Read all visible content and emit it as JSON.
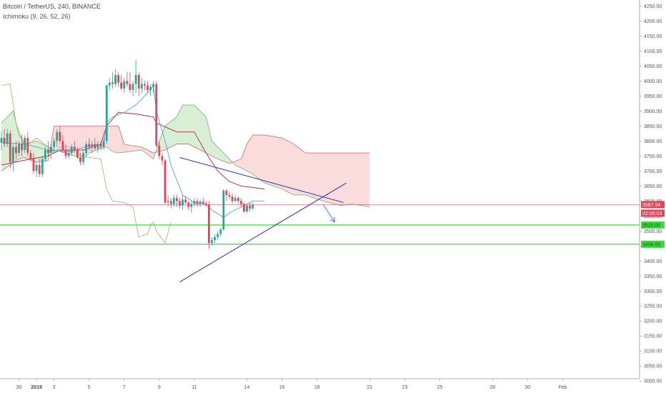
{
  "header": {
    "symbol": "Bitcoin / TetherUS, 240, BINANCE",
    "indicator": "Ichimoku (9, 26, 52, 26)"
  },
  "colors": {
    "bull": "#26a69a",
    "bear": "#e0455a",
    "cloud_bull_fill": "#d8eed5",
    "cloud_bear_fill": "#fbdcdc",
    "span_a": "#7fb77a",
    "span_b": "#d4747a",
    "conversion": "#4aa3df",
    "base": "#a82d3c",
    "lagging": "#b5b27a",
    "trendline": "#3f3fbf",
    "support": "#3fd93f",
    "price_line": "#e0455a"
  },
  "chart_data": {
    "type": "candlestick",
    "title": "Bitcoin / TetherUS, 240, BINANCE",
    "indicator": "Ichimoku (9, 26, 52, 26)",
    "ylim": [
      2960,
      4270
    ],
    "y_ticks": [
      3000,
      3050,
      3100,
      3150,
      3200,
      3250,
      3300,
      3350,
      3400,
      3450,
      3500,
      3550,
      3600,
      3650,
      3700,
      3750,
      3800,
      3850,
      3900,
      3950,
      4000,
      4050,
      4100,
      4150,
      4200,
      4250
    ],
    "x_ticks": [
      {
        "label": "30",
        "t": 6,
        "bold": false
      },
      {
        "label": "2019",
        "t": 12,
        "bold": true
      },
      {
        "label": "3",
        "t": 18,
        "bold": false
      },
      {
        "label": "5",
        "t": 30,
        "bold": false
      },
      {
        "label": "7",
        "t": 42,
        "bold": false
      },
      {
        "label": "9",
        "t": 54,
        "bold": false
      },
      {
        "label": "11",
        "t": 66,
        "bold": false
      },
      {
        "label": "14",
        "t": 84,
        "bold": false
      },
      {
        "label": "16",
        "t": 96,
        "bold": false
      },
      {
        "label": "18",
        "t": 108,
        "bold": false
      },
      {
        "label": "21",
        "t": 126,
        "bold": false
      },
      {
        "label": "23",
        "t": 138,
        "bold": false
      },
      {
        "label": "25",
        "t": 150,
        "bold": false
      },
      {
        "label": "28",
        "t": 168,
        "bold": false
      },
      {
        "label": "30",
        "t": 180,
        "bold": false
      },
      {
        "label": "Feb",
        "t": 192,
        "bold": false
      }
    ],
    "last_price": 3587.94,
    "last_price_label": "3587.94",
    "countdown_label": "02:06:03",
    "levels": [
      {
        "value": 3520,
        "label": "3520.00"
      },
      {
        "value": 3456,
        "label": "3456.00"
      }
    ],
    "candles": [
      [
        3795,
        3830,
        3770,
        3810
      ],
      [
        3810,
        3840,
        3780,
        3790
      ],
      [
        3790,
        3840,
        3780,
        3825
      ],
      [
        3825,
        3835,
        3710,
        3730
      ],
      [
        3730,
        3790,
        3700,
        3780
      ],
      [
        3780,
        3800,
        3740,
        3760
      ],
      [
        3760,
        3800,
        3750,
        3790
      ],
      [
        3790,
        3820,
        3750,
        3770
      ],
      [
        3770,
        3820,
        3760,
        3810
      ],
      [
        3810,
        3830,
        3750,
        3760
      ],
      [
        3760,
        3770,
        3730,
        3740
      ],
      [
        3740,
        3760,
        3690,
        3700
      ],
      [
        3700,
        3730,
        3680,
        3720
      ],
      [
        3720,
        3740,
        3680,
        3690
      ],
      [
        3690,
        3750,
        3680,
        3740
      ],
      [
        3740,
        3780,
        3730,
        3770
      ],
      [
        3770,
        3800,
        3750,
        3760
      ],
      [
        3760,
        3790,
        3740,
        3780
      ],
      [
        3780,
        3810,
        3760,
        3800
      ],
      [
        3800,
        3840,
        3780,
        3830
      ],
      [
        3830,
        3850,
        3790,
        3800
      ],
      [
        3800,
        3820,
        3760,
        3770
      ],
      [
        3770,
        3790,
        3740,
        3750
      ],
      [
        3750,
        3770,
        3740,
        3760
      ],
      [
        3760,
        3790,
        3750,
        3780
      ],
      [
        3780,
        3800,
        3760,
        3770
      ],
      [
        3770,
        3780,
        3740,
        3745
      ],
      [
        3745,
        3760,
        3720,
        3730
      ],
      [
        3730,
        3770,
        3720,
        3760
      ],
      [
        3760,
        3800,
        3750,
        3790
      ],
      [
        3790,
        3810,
        3770,
        3780
      ],
      [
        3780,
        3800,
        3760,
        3790
      ],
      [
        3790,
        3810,
        3770,
        3775
      ],
      [
        3775,
        3800,
        3760,
        3790
      ],
      [
        3790,
        3800,
        3770,
        3780
      ],
      [
        3780,
        3810,
        3770,
        3800
      ],
      [
        3800,
        3990,
        3790,
        3985
      ],
      [
        3985,
        4010,
        3970,
        3995
      ],
      [
        3995,
        4030,
        3975,
        3990
      ],
      [
        3990,
        4040,
        3980,
        4020
      ],
      [
        4020,
        4030,
        3980,
        3995
      ],
      [
        3995,
        4020,
        3970,
        3975
      ],
      [
        3975,
        4010,
        3960,
        4000
      ],
      [
        4000,
        4030,
        3980,
        3990
      ],
      [
        3990,
        4030,
        3960,
        3970
      ],
      [
        3970,
        4000,
        3950,
        3990
      ],
      [
        3990,
        4070,
        3960,
        4020
      ],
      [
        4020,
        4030,
        3950,
        3975
      ],
      [
        3975,
        4010,
        3960,
        3990
      ],
      [
        3990,
        4000,
        3970,
        3985
      ],
      [
        3985,
        4000,
        3960,
        3970
      ],
      [
        3970,
        3990,
        3950,
        3980
      ],
      [
        3980,
        4000,
        3960,
        3990
      ],
      [
        3990,
        4000,
        3780,
        3785
      ],
      [
        3785,
        3800,
        3740,
        3750
      ],
      [
        3750,
        3760,
        3720,
        3735
      ],
      [
        3735,
        3740,
        3590,
        3595
      ],
      [
        3595,
        3620,
        3580,
        3600
      ],
      [
        3600,
        3610,
        3575,
        3590
      ],
      [
        3590,
        3620,
        3580,
        3610
      ],
      [
        3610,
        3620,
        3580,
        3600
      ],
      [
        3600,
        3610,
        3575,
        3585
      ],
      [
        3585,
        3620,
        3570,
        3605
      ],
      [
        3605,
        3615,
        3590,
        3595
      ],
      [
        3595,
        3600,
        3570,
        3580
      ],
      [
        3580,
        3600,
        3560,
        3590
      ],
      [
        3590,
        3610,
        3580,
        3600
      ],
      [
        3600,
        3610,
        3580,
        3590
      ],
      [
        3590,
        3605,
        3580,
        3598
      ],
      [
        3598,
        3610,
        3585,
        3592
      ],
      [
        3592,
        3600,
        3580,
        3588
      ],
      [
        3588,
        3600,
        3440,
        3460
      ],
      [
        3460,
        3480,
        3450,
        3470
      ],
      [
        3470,
        3490,
        3460,
        3480
      ],
      [
        3480,
        3500,
        3470,
        3490
      ],
      [
        3490,
        3510,
        3480,
        3505
      ],
      [
        3505,
        3640,
        3500,
        3635
      ],
      [
        3635,
        3640,
        3600,
        3620
      ],
      [
        3620,
        3630,
        3605,
        3615
      ],
      [
        3615,
        3625,
        3590,
        3600
      ],
      [
        3600,
        3620,
        3595,
        3610
      ],
      [
        3610,
        3615,
        3590,
        3600
      ],
      [
        3600,
        3610,
        3580,
        3590
      ],
      [
        3590,
        3595,
        3560,
        3565
      ],
      [
        3565,
        3590,
        3560,
        3585
      ],
      [
        3585,
        3595,
        3565,
        3575
      ],
      [
        3575,
        3595,
        3570,
        3588
      ]
    ],
    "tenkan": [
      [
        0,
        3795
      ],
      [
        8,
        3790
      ],
      [
        16,
        3770
      ],
      [
        24,
        3765
      ],
      [
        30,
        3785
      ],
      [
        35,
        3790
      ],
      [
        36,
        3860
      ],
      [
        38,
        3880
      ],
      [
        42,
        3895
      ],
      [
        46,
        3920
      ],
      [
        50,
        3960
      ],
      [
        52,
        3985
      ],
      [
        53,
        3900
      ],
      [
        56,
        3800
      ],
      [
        58,
        3720
      ],
      [
        62,
        3620
      ],
      [
        66,
        3595
      ],
      [
        70,
        3590
      ],
      [
        72,
        3570
      ],
      [
        76,
        3545
      ],
      [
        78,
        3560
      ],
      [
        82,
        3580
      ],
      [
        86,
        3600
      ],
      [
        90,
        3600
      ]
    ],
    "kijun": [
      [
        0,
        3720
      ],
      [
        10,
        3740
      ],
      [
        16,
        3750
      ],
      [
        20,
        3770
      ],
      [
        28,
        3770
      ],
      [
        34,
        3790
      ],
      [
        36,
        3850
      ],
      [
        40,
        3895
      ],
      [
        46,
        3890
      ],
      [
        52,
        3880
      ],
      [
        53,
        3860
      ],
      [
        60,
        3830
      ],
      [
        66,
        3830
      ],
      [
        70,
        3760
      ],
      [
        74,
        3700
      ],
      [
        78,
        3665
      ],
      [
        82,
        3650
      ],
      [
        90,
        3640
      ]
    ],
    "chikou": [
      [
        0,
        3985
      ],
      [
        3,
        3990
      ],
      [
        5,
        3860
      ],
      [
        8,
        3780
      ],
      [
        12,
        3810
      ],
      [
        16,
        3780
      ],
      [
        18,
        3760
      ],
      [
        20,
        3780
      ],
      [
        22,
        3780
      ],
      [
        25,
        3780
      ],
      [
        27,
        3750
      ],
      [
        30,
        3745
      ],
      [
        34,
        3740
      ],
      [
        36,
        3640
      ],
      [
        38,
        3600
      ],
      [
        42,
        3595
      ],
      [
        45,
        3580
      ],
      [
        47,
        3480
      ],
      [
        50,
        3490
      ],
      [
        51,
        3520
      ],
      [
        52,
        3530
      ],
      [
        53,
        3500
      ],
      [
        56,
        3460
      ],
      [
        58,
        3530
      ]
    ],
    "span_a": [
      [
        0,
        3860
      ],
      [
        4,
        3900
      ],
      [
        6,
        3820
      ],
      [
        8,
        3790
      ],
      [
        12,
        3800
      ],
      [
        14,
        3790
      ],
      [
        18,
        3770
      ],
      [
        22,
        3760
      ],
      [
        28,
        3740
      ],
      [
        30,
        3760
      ],
      [
        34,
        3775
      ],
      [
        36,
        3780
      ],
      [
        38,
        3765
      ],
      [
        40,
        3760
      ],
      [
        44,
        3765
      ],
      [
        48,
        3770
      ],
      [
        50,
        3755
      ],
      [
        52,
        3740
      ],
      [
        54,
        3800
      ],
      [
        56,
        3850
      ],
      [
        60,
        3880
      ],
      [
        62,
        3920
      ],
      [
        66,
        3920
      ],
      [
        68,
        3900
      ],
      [
        70,
        3880
      ],
      [
        72,
        3800
      ],
      [
        76,
        3760
      ],
      [
        80,
        3720
      ],
      [
        86,
        3690
      ],
      [
        90,
        3660
      ],
      [
        96,
        3640
      ],
      [
        100,
        3620
      ],
      [
        104,
        3620
      ],
      [
        110,
        3600
      ],
      [
        116,
        3585
      ],
      [
        120,
        3590
      ],
      [
        126,
        3580
      ]
    ],
    "span_b": [
      [
        0,
        3700
      ],
      [
        6,
        3740
      ],
      [
        8,
        3745
      ],
      [
        12,
        3730
      ],
      [
        16,
        3735
      ],
      [
        18,
        3850
      ],
      [
        24,
        3850
      ],
      [
        32,
        3850
      ],
      [
        36,
        3850
      ],
      [
        40,
        3850
      ],
      [
        42,
        3790
      ],
      [
        44,
        3785
      ],
      [
        48,
        3780
      ],
      [
        52,
        3760
      ],
      [
        54,
        3765
      ],
      [
        56,
        3770
      ],
      [
        60,
        3790
      ],
      [
        64,
        3790
      ],
      [
        66,
        3780
      ],
      [
        70,
        3760
      ],
      [
        74,
        3740
      ],
      [
        78,
        3725
      ],
      [
        82,
        3740
      ],
      [
        84,
        3790
      ],
      [
        86,
        3820
      ],
      [
        90,
        3820
      ],
      [
        96,
        3810
      ],
      [
        100,
        3790
      ],
      [
        104,
        3760
      ],
      [
        112,
        3760
      ],
      [
        118,
        3760
      ],
      [
        126,
        3760
      ]
    ],
    "trendlines": [
      {
        "from": [
          61,
          3745
        ],
        "to": [
          117,
          3595
        ]
      },
      {
        "from": [
          61,
          3330
        ],
        "to": [
          118,
          3660
        ]
      }
    ],
    "projection_arrow": {
      "from": [
        110,
        3590
      ],
      "to": [
        114,
        3530
      ]
    }
  }
}
